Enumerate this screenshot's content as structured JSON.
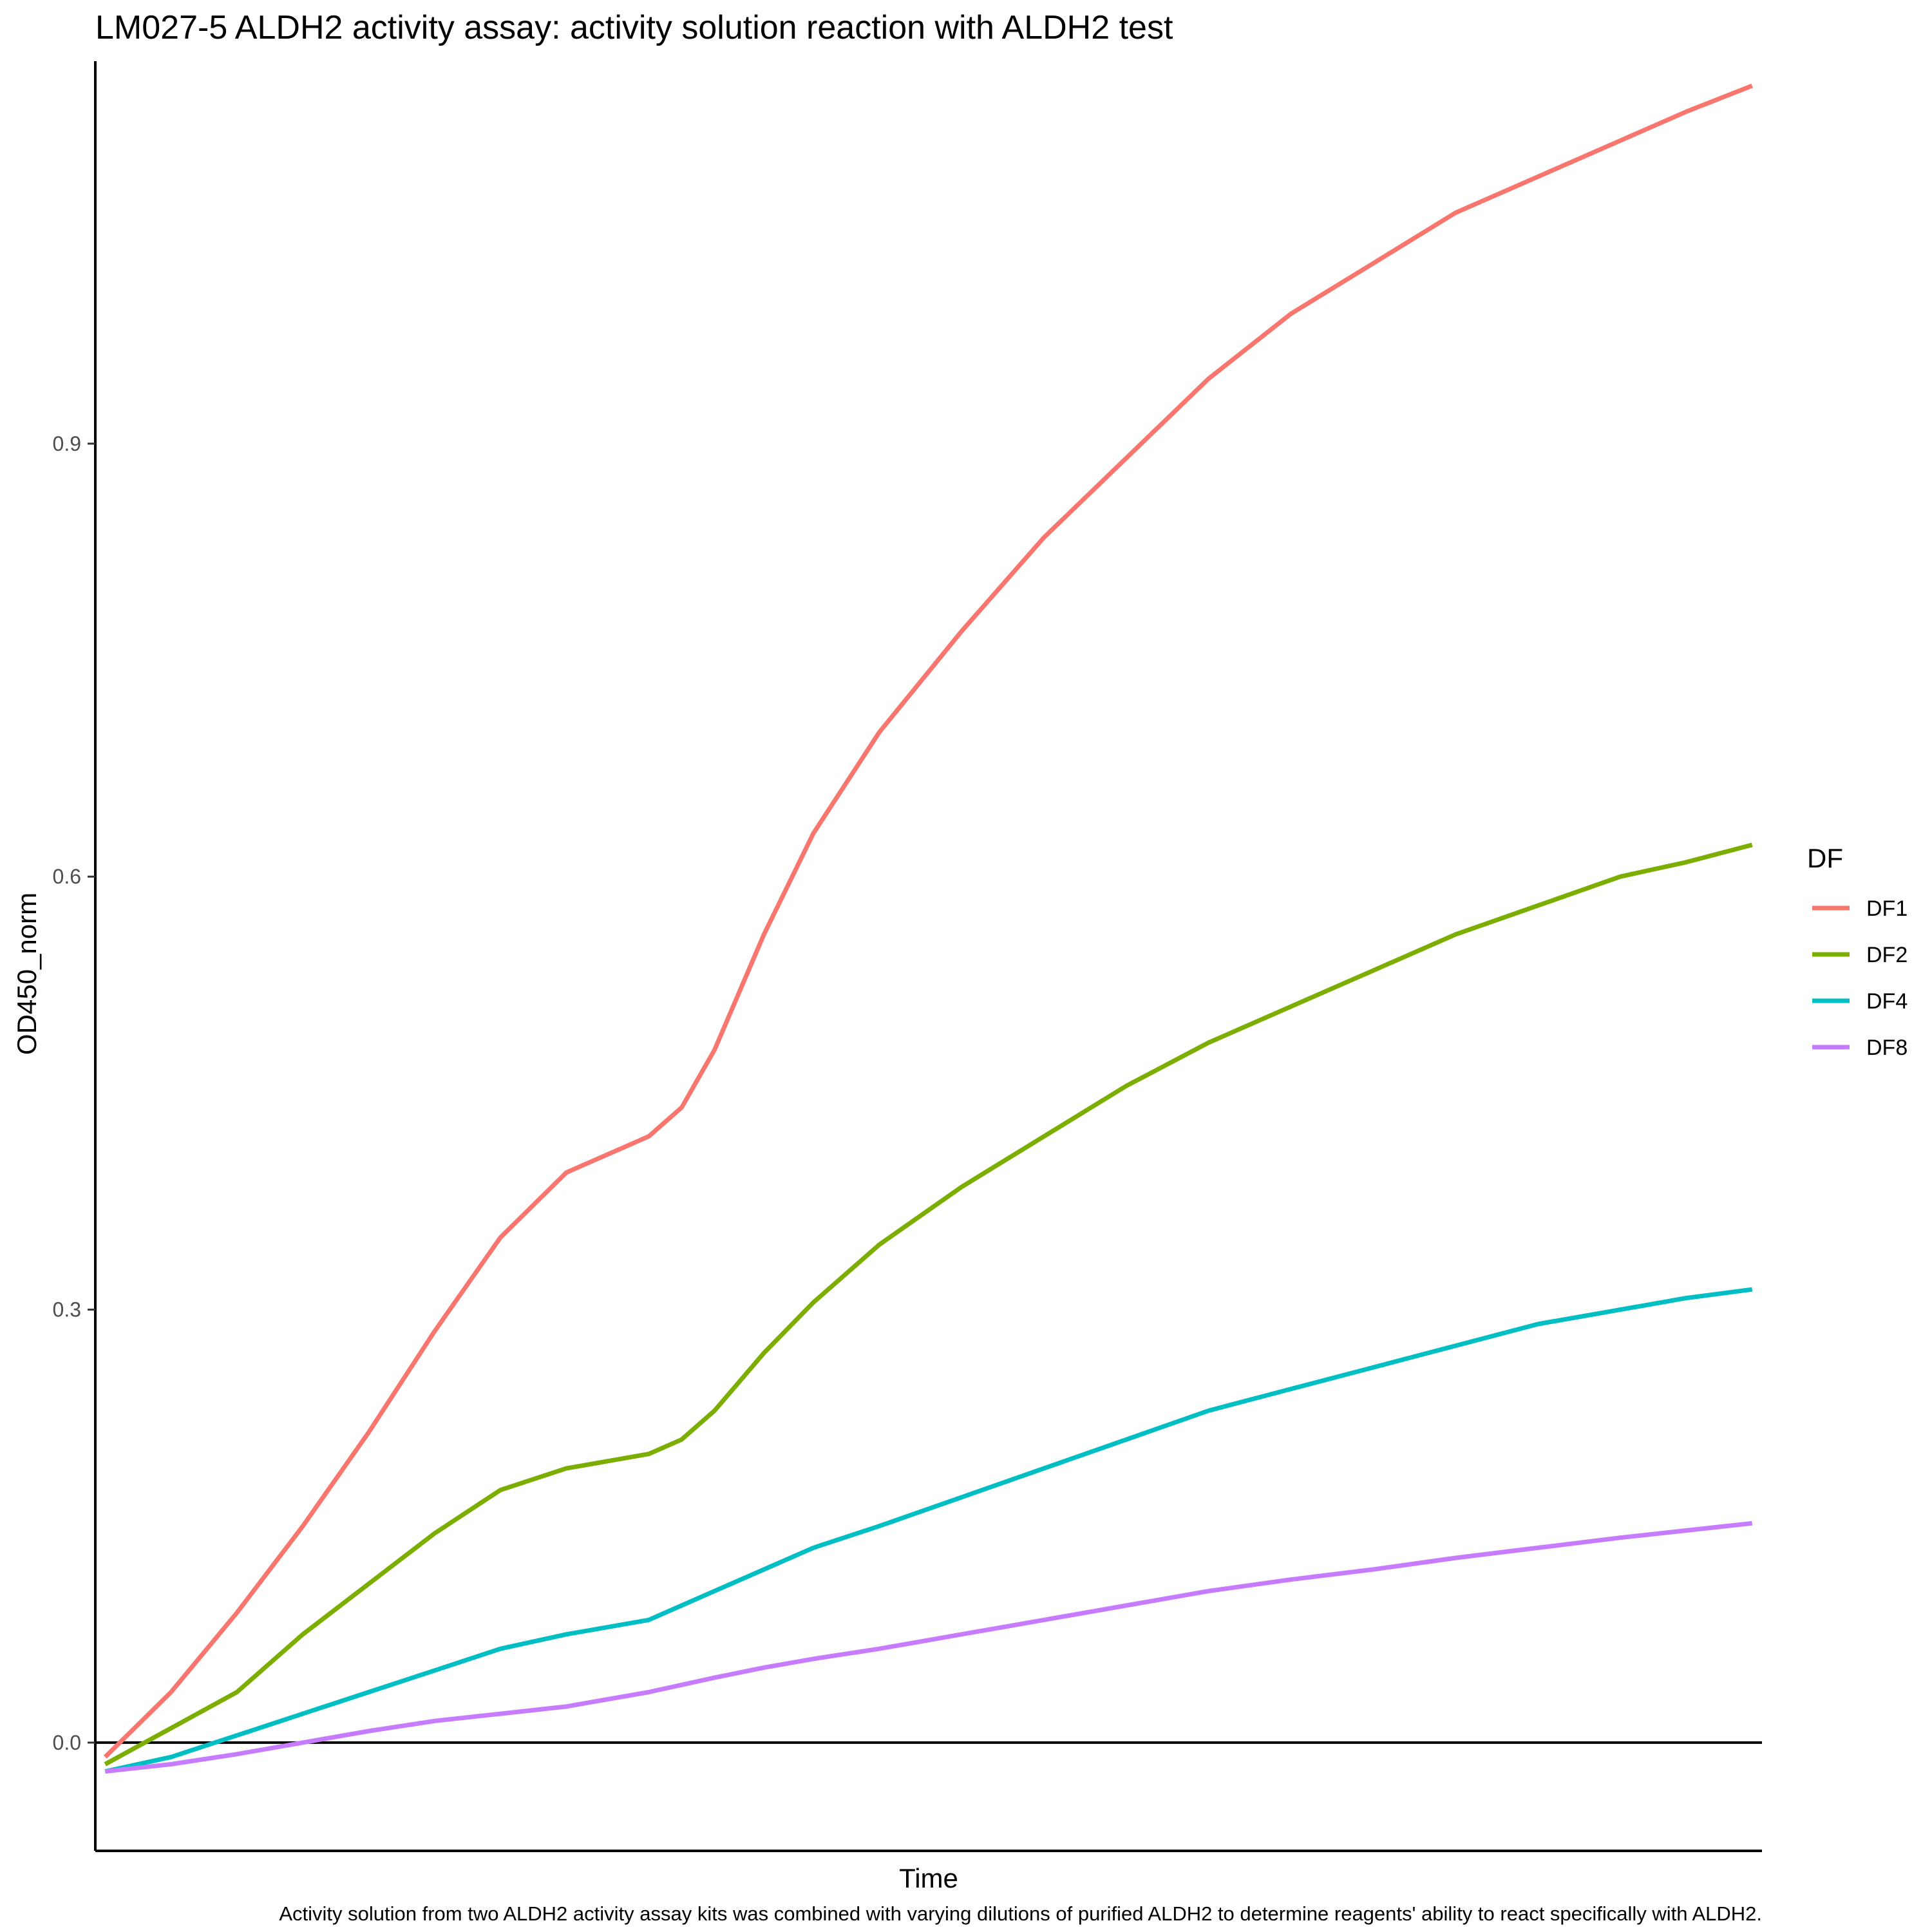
{
  "chart_data": {
    "type": "line",
    "title": "LM027-5 ALDH2 activity assay: activity solution reaction with ALDH2 test",
    "caption": "Activity solution from two ALDH2 activity assay kits was combined with varying dilutions of purified ALDH2 to determine reagents' ability to react specifically with ALDH2.",
    "xlabel": "Time",
    "ylabel": "OD450_norm",
    "ylim": [
      -0.075,
      1.165
    ],
    "xlim": [
      -0.6,
      100.6
    ],
    "yticks": [
      0.0,
      0.3,
      0.6,
      0.9
    ],
    "ytick_labels": [
      "0.0",
      "0.3",
      "0.6",
      "0.9"
    ],
    "hline": 0,
    "grid": false,
    "legend": {
      "title": "DF",
      "position": "right",
      "items": [
        "DF1",
        "DF2",
        "DF4",
        "DF8"
      ]
    },
    "series": [
      {
        "name": "DF1",
        "color": "#F8766D",
        "points": [
          [
            0,
            -0.01
          ],
          [
            4,
            0.035
          ],
          [
            8,
            0.09
          ],
          [
            12,
            0.15
          ],
          [
            16,
            0.215
          ],
          [
            20,
            0.285
          ],
          [
            24,
            0.35
          ],
          [
            28,
            0.395
          ],
          [
            33,
            0.42
          ],
          [
            35,
            0.44
          ],
          [
            37,
            0.48
          ],
          [
            40,
            0.56
          ],
          [
            43,
            0.63
          ],
          [
            47,
            0.7
          ],
          [
            52,
            0.77
          ],
          [
            57,
            0.835
          ],
          [
            62,
            0.89
          ],
          [
            67,
            0.945
          ],
          [
            72,
            0.99
          ],
          [
            77,
            1.025
          ],
          [
            82,
            1.06
          ],
          [
            87,
            1.085
          ],
          [
            92,
            1.11
          ],
          [
            96,
            1.13
          ],
          [
            100,
            1.148
          ]
        ]
      },
      {
        "name": "DF2",
        "color": "#7CAE00",
        "points": [
          [
            0,
            -0.015
          ],
          [
            4,
            0.01
          ],
          [
            8,
            0.035
          ],
          [
            12,
            0.075
          ],
          [
            16,
            0.11
          ],
          [
            20,
            0.145
          ],
          [
            24,
            0.175
          ],
          [
            28,
            0.19
          ],
          [
            33,
            0.2
          ],
          [
            35,
            0.21
          ],
          [
            37,
            0.23
          ],
          [
            40,
            0.27
          ],
          [
            43,
            0.305
          ],
          [
            47,
            0.345
          ],
          [
            52,
            0.385
          ],
          [
            57,
            0.42
          ],
          [
            62,
            0.455
          ],
          [
            67,
            0.485
          ],
          [
            72,
            0.51
          ],
          [
            77,
            0.535
          ],
          [
            82,
            0.56
          ],
          [
            87,
            0.58
          ],
          [
            92,
            0.6
          ],
          [
            96,
            0.61
          ],
          [
            100,
            0.622
          ]
        ]
      },
      {
        "name": "DF4",
        "color": "#00BFC4",
        "points": [
          [
            0,
            -0.02
          ],
          [
            4,
            -0.01
          ],
          [
            8,
            0.005
          ],
          [
            12,
            0.02
          ],
          [
            16,
            0.035
          ],
          [
            20,
            0.05
          ],
          [
            24,
            0.065
          ],
          [
            28,
            0.075
          ],
          [
            33,
            0.085
          ],
          [
            35,
            0.095
          ],
          [
            37,
            0.105
          ],
          [
            40,
            0.12
          ],
          [
            43,
            0.135
          ],
          [
            47,
            0.15
          ],
          [
            52,
            0.17
          ],
          [
            57,
            0.19
          ],
          [
            62,
            0.21
          ],
          [
            67,
            0.23
          ],
          [
            72,
            0.245
          ],
          [
            77,
            0.26
          ],
          [
            82,
            0.275
          ],
          [
            87,
            0.29
          ],
          [
            92,
            0.3
          ],
          [
            96,
            0.308
          ],
          [
            100,
            0.314
          ]
        ]
      },
      {
        "name": "DF8",
        "color": "#C77CFF",
        "points": [
          [
            0,
            -0.02
          ],
          [
            4,
            -0.015
          ],
          [
            8,
            -0.008
          ],
          [
            12,
            0.0
          ],
          [
            16,
            0.008
          ],
          [
            20,
            0.015
          ],
          [
            24,
            0.02
          ],
          [
            28,
            0.025
          ],
          [
            33,
            0.035
          ],
          [
            35,
            0.04
          ],
          [
            37,
            0.045
          ],
          [
            40,
            0.052
          ],
          [
            43,
            0.058
          ],
          [
            47,
            0.065
          ],
          [
            52,
            0.075
          ],
          [
            57,
            0.085
          ],
          [
            62,
            0.095
          ],
          [
            67,
            0.105
          ],
          [
            72,
            0.113
          ],
          [
            77,
            0.12
          ],
          [
            82,
            0.128
          ],
          [
            87,
            0.135
          ],
          [
            92,
            0.142
          ],
          [
            96,
            0.147
          ],
          [
            100,
            0.152
          ]
        ]
      }
    ]
  }
}
